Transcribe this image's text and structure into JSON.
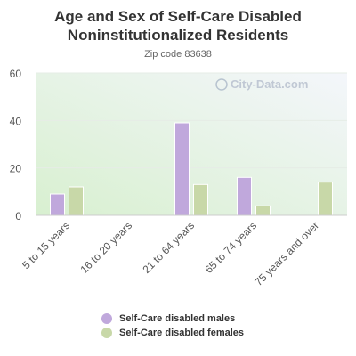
{
  "chart_data": {
    "type": "bar",
    "title_lines": [
      "Age and Sex of Self-Care Disabled",
      "Noninstitutionalized Residents"
    ],
    "subtitle": "Zip code 83638",
    "watermark": "City-Data.com",
    "categories": [
      "5 to 15 years",
      "16 to 20 years",
      "21 to 64 years",
      "65 to 74 years",
      "75 years and over"
    ],
    "series": [
      {
        "name": "Self-Care disabled males",
        "color": "#c0a8dc",
        "values": [
          9,
          0,
          39,
          16,
          0
        ]
      },
      {
        "name": "Self-Care disabled females",
        "color": "#c8d8a8",
        "values": [
          12,
          0,
          13,
          4,
          14
        ]
      }
    ],
    "ylim": [
      0,
      60
    ],
    "yticks": [
      0,
      20,
      40,
      60
    ],
    "grid": true,
    "legend_position": "bottom"
  }
}
